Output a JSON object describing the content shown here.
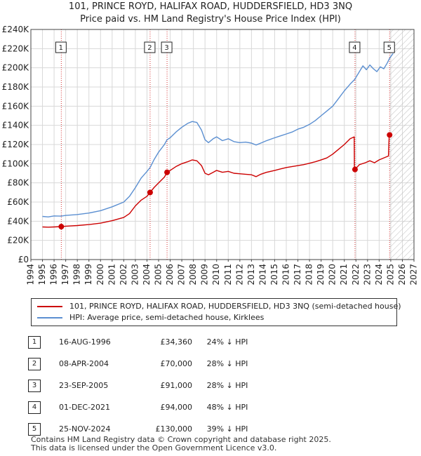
{
  "title_line1": "101, PRINCE ROYD, HALIFAX ROAD, HUDDERSFIELD, HD3 3NQ",
  "title_line2": "Price paid vs. HM Land Registry's House Price Index (HPI)",
  "legend": {
    "red": "101, PRINCE ROYD, HALIFAX ROAD, HUDDERSFIELD, HD3 3NQ (semi-detached house)",
    "blue": "HPI: Average price, semi-detached house, Kirklees"
  },
  "colors": {
    "red": "#cc0000",
    "blue": "#5b8fd1",
    "grid": "#d8d8d8"
  },
  "sales": [
    {
      "index": "1",
      "date": "16-AUG-1996",
      "price": "£34,360",
      "hpi": "24% ↓ HPI"
    },
    {
      "index": "2",
      "date": "08-APR-2004",
      "price": "£70,000",
      "hpi": "28% ↓ HPI"
    },
    {
      "index": "3",
      "date": "23-SEP-2005",
      "price": "£91,000",
      "hpi": "28% ↓ HPI"
    },
    {
      "index": "4",
      "date": "01-DEC-2021",
      "price": "£94,000",
      "hpi": "48% ↓ HPI"
    },
    {
      "index": "5",
      "date": "25-NOV-2024",
      "price": "£130,000",
      "hpi": "39% ↓ HPI"
    }
  ],
  "footer_line1": "Contains HM Land Registry data © Crown copyright and database right 2025.",
  "footer_line2": "This data is licensed under the Open Government Licence v3.0.",
  "chart_data": {
    "type": "line",
    "xlim": [
      1994,
      2027
    ],
    "ylim": [
      0,
      240000
    ],
    "x_ticks": [
      1994,
      1995,
      1996,
      1997,
      1998,
      1999,
      2000,
      2001,
      2002,
      2003,
      2004,
      2005,
      2006,
      2007,
      2008,
      2009,
      2010,
      2011,
      2012,
      2013,
      2014,
      2015,
      2016,
      2017,
      2018,
      2019,
      2020,
      2021,
      2022,
      2023,
      2024,
      2025,
      2026,
      2027
    ],
    "y_ticks": [
      {
        "value": 0,
        "label": "£0"
      },
      {
        "value": 20000,
        "label": "£20K"
      },
      {
        "value": 40000,
        "label": "£40K"
      },
      {
        "value": 60000,
        "label": "£60K"
      },
      {
        "value": 80000,
        "label": "£80K"
      },
      {
        "value": 100000,
        "label": "£100K"
      },
      {
        "value": 120000,
        "label": "£120K"
      },
      {
        "value": 140000,
        "label": "£140K"
      },
      {
        "value": 160000,
        "label": "£160K"
      },
      {
        "value": 180000,
        "label": "£180K"
      },
      {
        "value": 200000,
        "label": "£200K"
      },
      {
        "value": 220000,
        "label": "£220K"
      },
      {
        "value": 240000,
        "label": "£240K"
      }
    ],
    "grid": true,
    "hatched_region_from": 2024.9,
    "series": [
      {
        "name": "101, PRINCE ROYD, HALIFAX ROAD, HUDDERSFIELD, HD3 3NQ (semi-detached house)",
        "color": "red",
        "points": [
          [
            1995.0,
            34000
          ],
          [
            1995.5,
            33800
          ],
          [
            1996.0,
            34000
          ],
          [
            1996.6,
            34360
          ],
          [
            1997.0,
            34800
          ],
          [
            1998.0,
            35500
          ],
          [
            1999.0,
            36500
          ],
          [
            2000.0,
            38000
          ],
          [
            2001.0,
            40500
          ],
          [
            2002.0,
            44000
          ],
          [
            2002.5,
            48000
          ],
          [
            2003.0,
            56000
          ],
          [
            2003.5,
            62000
          ],
          [
            2004.0,
            66000
          ],
          [
            2004.27,
            70000
          ],
          [
            2004.6,
            75000
          ],
          [
            2005.0,
            80000
          ],
          [
            2005.5,
            86000
          ],
          [
            2005.73,
            91000
          ],
          [
            2006.0,
            93000
          ],
          [
            2006.5,
            97000
          ],
          [
            2007.0,
            100000
          ],
          [
            2007.5,
            102000
          ],
          [
            2007.9,
            104000
          ],
          [
            2008.3,
            103000
          ],
          [
            2008.7,
            98000
          ],
          [
            2009.0,
            90000
          ],
          [
            2009.3,
            88500
          ],
          [
            2009.7,
            91000
          ],
          [
            2010.0,
            93000
          ],
          [
            2010.5,
            91000
          ],
          [
            2011.0,
            92000
          ],
          [
            2011.5,
            90000
          ],
          [
            2012.0,
            89500
          ],
          [
            2012.5,
            89000
          ],
          [
            2013.0,
            88500
          ],
          [
            2013.4,
            86500
          ],
          [
            2013.8,
            89000
          ],
          [
            2014.3,
            91000
          ],
          [
            2015.0,
            93000
          ],
          [
            2015.5,
            94500
          ],
          [
            2016.0,
            96000
          ],
          [
            2016.5,
            97000
          ],
          [
            2017.0,
            98000
          ],
          [
            2017.5,
            99000
          ],
          [
            2018.0,
            100500
          ],
          [
            2018.5,
            102000
          ],
          [
            2019.0,
            104000
          ],
          [
            2019.5,
            106000
          ],
          [
            2020.0,
            110000
          ],
          [
            2020.5,
            115000
          ],
          [
            2021.0,
            120000
          ],
          [
            2021.5,
            126000
          ],
          [
            2021.85,
            128000
          ],
          [
            2021.87,
            95000
          ],
          [
            2021.92,
            94000
          ],
          [
            2022.3,
            99000
          ],
          [
            2022.8,
            101000
          ],
          [
            2023.2,
            103000
          ],
          [
            2023.6,
            101000
          ],
          [
            2024.0,
            104000
          ],
          [
            2024.4,
            106000
          ],
          [
            2024.8,
            108000
          ],
          [
            2024.86,
            128000
          ],
          [
            2024.9,
            130000
          ]
        ]
      },
      {
        "name": "HPI: Average price, semi-detached house, Kirklees",
        "color": "blue",
        "points": [
          [
            1995.0,
            45000
          ],
          [
            1995.5,
            44500
          ],
          [
            1996.0,
            45500
          ],
          [
            1996.6,
            45300
          ],
          [
            1997.0,
            46000
          ],
          [
            1998.0,
            47000
          ],
          [
            1999.0,
            48500
          ],
          [
            2000.0,
            51000
          ],
          [
            2001.0,
            55000
          ],
          [
            2002.0,
            60000
          ],
          [
            2002.5,
            66000
          ],
          [
            2003.0,
            75000
          ],
          [
            2003.5,
            85000
          ],
          [
            2004.0,
            92000
          ],
          [
            2004.27,
            96000
          ],
          [
            2004.6,
            104000
          ],
          [
            2005.0,
            112000
          ],
          [
            2005.5,
            120000
          ],
          [
            2005.73,
            125000
          ],
          [
            2006.0,
            127000
          ],
          [
            2006.5,
            133000
          ],
          [
            2007.0,
            138000
          ],
          [
            2007.5,
            142000
          ],
          [
            2007.9,
            144000
          ],
          [
            2008.3,
            143000
          ],
          [
            2008.7,
            135000
          ],
          [
            2009.0,
            125000
          ],
          [
            2009.3,
            122000
          ],
          [
            2009.7,
            126000
          ],
          [
            2010.0,
            128000
          ],
          [
            2010.5,
            124000
          ],
          [
            2011.0,
            126000
          ],
          [
            2011.5,
            123000
          ],
          [
            2012.0,
            122000
          ],
          [
            2012.5,
            122500
          ],
          [
            2013.0,
            121500
          ],
          [
            2013.4,
            119500
          ],
          [
            2013.8,
            121500
          ],
          [
            2014.3,
            124000
          ],
          [
            2015.0,
            127000
          ],
          [
            2015.5,
            129000
          ],
          [
            2016.0,
            131000
          ],
          [
            2016.5,
            133000
          ],
          [
            2017.0,
            136000
          ],
          [
            2017.5,
            138000
          ],
          [
            2018.0,
            141000
          ],
          [
            2018.5,
            145000
          ],
          [
            2019.0,
            150000
          ],
          [
            2019.5,
            155000
          ],
          [
            2020.0,
            160000
          ],
          [
            2020.5,
            168000
          ],
          [
            2021.0,
            176000
          ],
          [
            2021.5,
            183000
          ],
          [
            2021.9,
            188000
          ],
          [
            2022.3,
            196000
          ],
          [
            2022.6,
            202000
          ],
          [
            2022.9,
            198000
          ],
          [
            2023.2,
            203000
          ],
          [
            2023.5,
            199000
          ],
          [
            2023.8,
            196000
          ],
          [
            2024.1,
            201000
          ],
          [
            2024.4,
            199000
          ],
          [
            2024.7,
            205000
          ],
          [
            2024.9,
            210000
          ],
          [
            2025.2,
            215000
          ]
        ]
      }
    ],
    "sales_markers": [
      {
        "label": "1",
        "x": 1996.62,
        "y": 34360
      },
      {
        "label": "2",
        "x": 2004.27,
        "y": 70000
      },
      {
        "label": "3",
        "x": 2005.73,
        "y": 91000
      },
      {
        "label": "4",
        "x": 2021.92,
        "y": 94000
      },
      {
        "label": "5",
        "x": 2024.9,
        "y": 130000
      }
    ]
  }
}
